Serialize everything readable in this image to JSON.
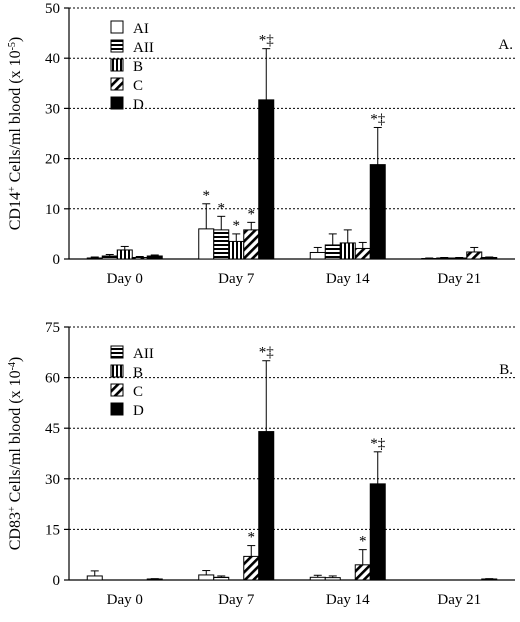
{
  "colors": {
    "ink": "#000000",
    "background": "#ffffff"
  },
  "chart_data": [
    {
      "type": "bar",
      "panel_label": "A.",
      "ylabel_pre": "CD14",
      "ylabel_sup": "+",
      "ylabel_mid": " Cells/ml blood (x 10",
      "ylabel_exp": "-5",
      "ylabel_post": ")",
      "ylim": [
        0,
        50
      ],
      "yticks": [
        0,
        10,
        20,
        30,
        40,
        50
      ],
      "grid": "horizontal dotted",
      "legend_position": "top-left",
      "categories": [
        "Day 0",
        "Day 7",
        "Day 14",
        "Day 21"
      ],
      "series": [
        {
          "name": "AI",
          "pattern": "white",
          "values": [
            0.2,
            6.0,
            1.3,
            0.1
          ],
          "errors": [
            0.2,
            5.0,
            1.0,
            0.1
          ],
          "marks": [
            "",
            "*",
            "",
            ""
          ]
        },
        {
          "name": "AII",
          "pattern": "horizontal",
          "values": [
            0.6,
            5.8,
            2.8,
            0.2
          ],
          "errors": [
            0.3,
            2.7,
            2.2,
            0.1
          ],
          "marks": [
            "",
            "*",
            "",
            ""
          ]
        },
        {
          "name": "B",
          "pattern": "vertical",
          "values": [
            1.8,
            3.5,
            3.2,
            0.2
          ],
          "errors": [
            0.7,
            1.5,
            2.6,
            0.1
          ],
          "marks": [
            "",
            "*",
            "",
            ""
          ]
        },
        {
          "name": "C",
          "pattern": "diagonal",
          "values": [
            0.3,
            5.8,
            2.1,
            1.4
          ],
          "errors": [
            0.2,
            1.5,
            1.2,
            0.9
          ],
          "marks": [
            "",
            "*",
            "",
            ""
          ]
        },
        {
          "name": "D",
          "pattern": "solid",
          "values": [
            0.6,
            31.7,
            18.8,
            0.3
          ],
          "errors": [
            0.2,
            10.2,
            7.4,
            0.1
          ],
          "marks": [
            "",
            "*‡",
            "*‡",
            ""
          ]
        }
      ]
    },
    {
      "type": "bar",
      "panel_label": "B.",
      "ylabel_pre": "CD83",
      "ylabel_sup": "+",
      "ylabel_mid": " Cells/ml blood (x 10",
      "ylabel_exp": "-4",
      "ylabel_post": ")",
      "ylim": [
        0,
        75
      ],
      "yticks": [
        0,
        15,
        30,
        45,
        60,
        75
      ],
      "grid": "horizontal dotted",
      "legend_position": "top-left",
      "categories": [
        "Day 0",
        "Day 7",
        "Day 14",
        "Day 21"
      ],
      "series": [
        {
          "name": "AI",
          "pattern": "white",
          "values": [
            1.2,
            1.5,
            0.8,
            0.0
          ],
          "errors": [
            1.5,
            1.3,
            0.6,
            0.0
          ],
          "marks": [
            "",
            "",
            "",
            ""
          ]
        },
        {
          "name": "AII",
          "pattern": "horizontal",
          "values": [
            0.0,
            0.8,
            0.7,
            0.0
          ],
          "errors": [
            0.0,
            0.4,
            0.5,
            0.0
          ],
          "marks": [
            "",
            "",
            "",
            ""
          ]
        },
        {
          "name": "B",
          "pattern": "vertical",
          "values": [
            0.0,
            0.0,
            0.0,
            0.0
          ],
          "errors": [
            0.0,
            0.0,
            0.0,
            0.0
          ],
          "marks": [
            "",
            "",
            "",
            ""
          ]
        },
        {
          "name": "C",
          "pattern": "diagonal",
          "values": [
            0.0,
            7.0,
            4.5,
            0.0
          ],
          "errors": [
            0.0,
            3.2,
            4.5,
            0.0
          ],
          "marks": [
            "",
            "*",
            "*",
            ""
          ]
        },
        {
          "name": "D",
          "pattern": "solid",
          "values": [
            0.3,
            44.0,
            28.5,
            0.3
          ],
          "errors": [
            0.1,
            21.0,
            9.5,
            0.1
          ],
          "marks": [
            "",
            "*‡",
            "*‡",
            ""
          ]
        }
      ],
      "legend_series": [
        "AII",
        "B",
        "C",
        "D"
      ]
    }
  ]
}
